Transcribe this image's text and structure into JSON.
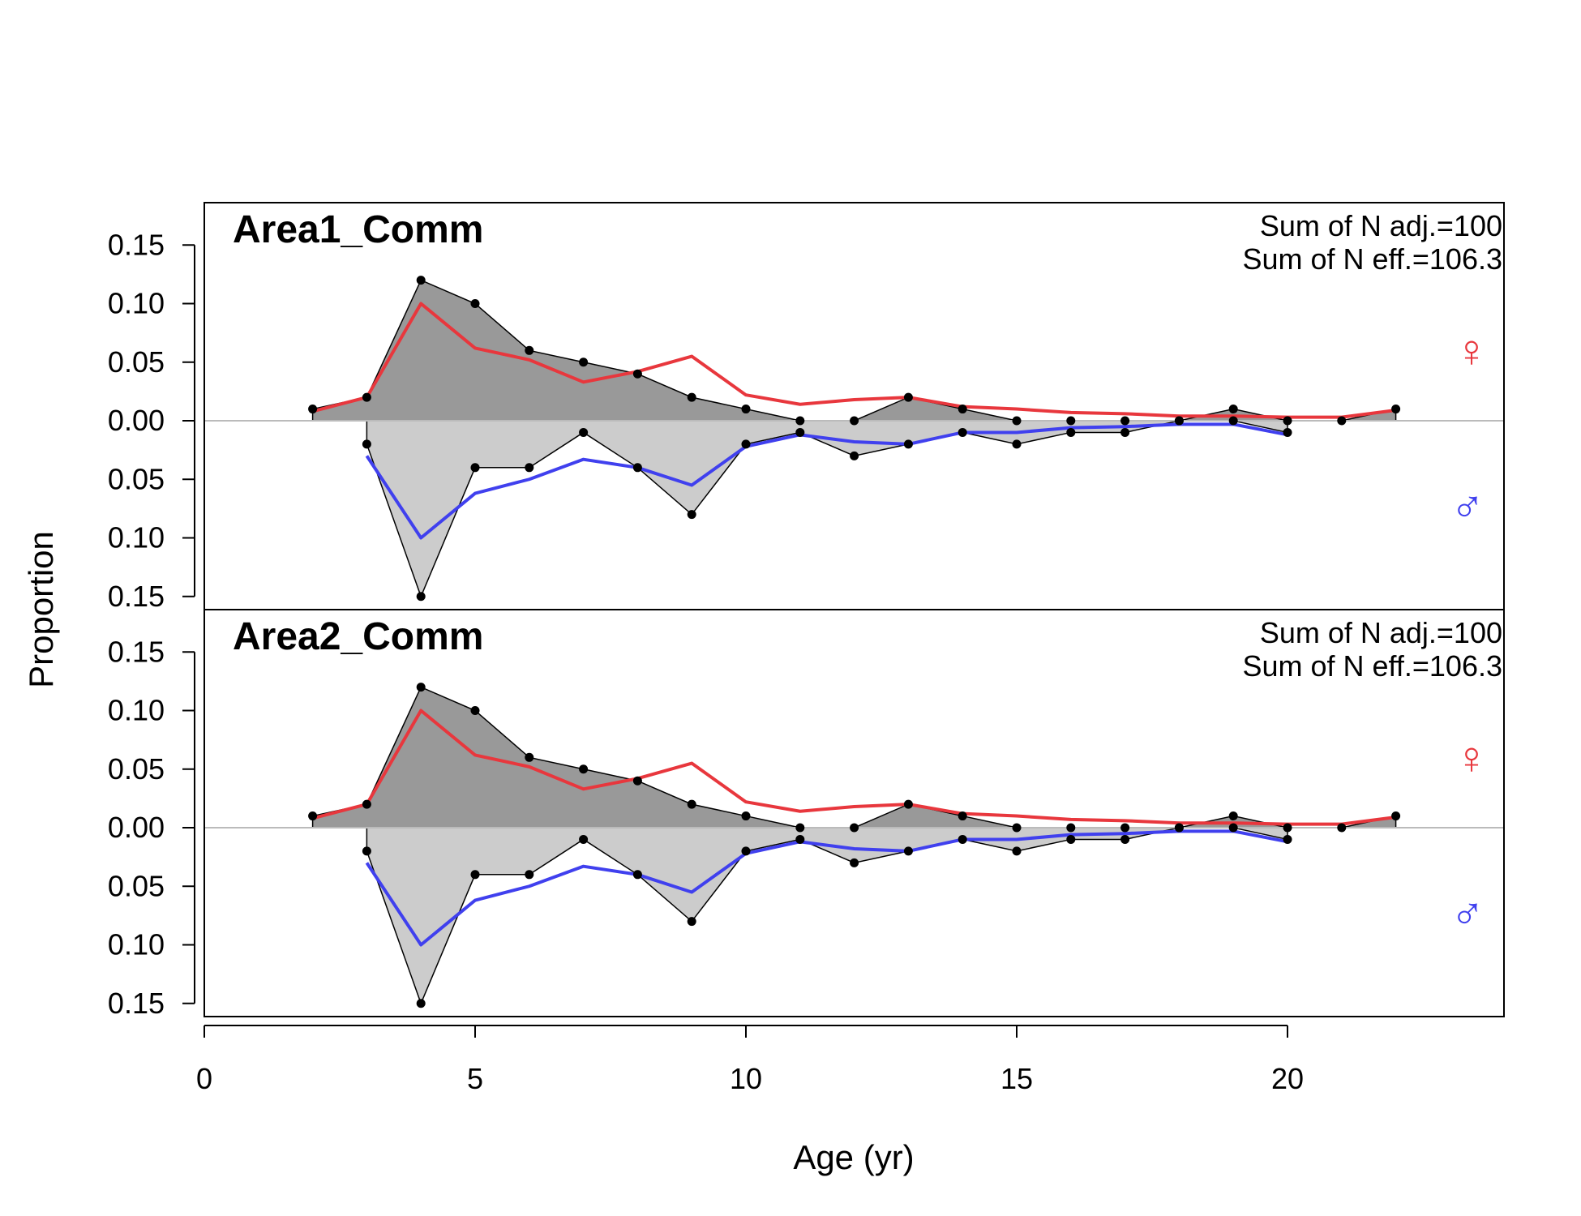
{
  "chart_data": {
    "type": "area",
    "xlabel": "Age (yr)",
    "ylabel": "Proportion",
    "xlim": [
      0,
      24
    ],
    "ylim": [
      -0.15,
      0.15
    ],
    "x_ticks": [
      "0",
      "5",
      "10",
      "15",
      "20"
    ],
    "x_tick_values": [
      0,
      5,
      10,
      15,
      20
    ],
    "y_ticks": [
      "0.15",
      "0.10",
      "0.05",
      "0.00",
      "0.05",
      "0.10",
      "0.15"
    ],
    "y_tick_values": [
      0.15,
      0.1,
      0.05,
      0.0,
      -0.05,
      -0.1,
      -0.15
    ],
    "colors": {
      "female_observed_fill": "#999999",
      "male_observed_fill": "#cccccc",
      "female_expected": "#e8373d",
      "male_expected": "#4040ee",
      "zero_line": "#bbbbbb"
    },
    "female_symbol": "♀",
    "male_symbol": "♂",
    "panels": [
      {
        "title": "Area1_Comm",
        "notes": [
          "Sum of N adj.=100",
          "Sum of N eff.=106.3"
        ],
        "female_observed": {
          "x": [
            2,
            3,
            4,
            5,
            6,
            7,
            8,
            9,
            10,
            11,
            12,
            13,
            14,
            15,
            16,
            17,
            18,
            19,
            20,
            21,
            22
          ],
          "y": [
            0.01,
            0.02,
            0.12,
            0.1,
            0.06,
            0.05,
            0.04,
            0.02,
            0.01,
            0.0,
            0.0,
            0.02,
            0.01,
            0.0,
            0.0,
            0.0,
            0.0,
            0.01,
            0.0,
            0.0,
            0.01
          ]
        },
        "female_expected": {
          "x": [
            2,
            3,
            4,
            5,
            6,
            7,
            8,
            9,
            10,
            11,
            12,
            13,
            14,
            15,
            16,
            17,
            18,
            19,
            20,
            21,
            22
          ],
          "y": [
            0.008,
            0.02,
            0.1,
            0.062,
            0.052,
            0.033,
            0.042,
            0.055,
            0.022,
            0.014,
            0.018,
            0.02,
            0.012,
            0.01,
            0.007,
            0.006,
            0.004,
            0.004,
            0.003,
            0.003,
            0.009
          ]
        },
        "male_observed": {
          "x": [
            3,
            4,
            5,
            6,
            7,
            8,
            9,
            10,
            11,
            12,
            13,
            14,
            15,
            16,
            17,
            18,
            19,
            20
          ],
          "y": [
            0.02,
            0.15,
            0.04,
            0.04,
            0.01,
            0.04,
            0.08,
            0.02,
            0.01,
            0.03,
            0.02,
            0.01,
            0.02,
            0.01,
            0.01,
            0.0,
            0.0,
            0.01
          ]
        },
        "male_expected": {
          "x": [
            3,
            4,
            5,
            6,
            7,
            8,
            9,
            10,
            11,
            12,
            13,
            14,
            15,
            16,
            17,
            18,
            19,
            20
          ],
          "y": [
            0.03,
            0.1,
            0.062,
            0.05,
            0.033,
            0.04,
            0.055,
            0.022,
            0.012,
            0.018,
            0.02,
            0.01,
            0.01,
            0.006,
            0.005,
            0.003,
            0.003,
            0.012
          ]
        }
      },
      {
        "title": "Area2_Comm",
        "notes": [
          "Sum of N adj.=100",
          "Sum of N eff.=106.3"
        ],
        "female_observed": {
          "x": [
            2,
            3,
            4,
            5,
            6,
            7,
            8,
            9,
            10,
            11,
            12,
            13,
            14,
            15,
            16,
            17,
            18,
            19,
            20,
            21,
            22
          ],
          "y": [
            0.01,
            0.02,
            0.12,
            0.1,
            0.06,
            0.05,
            0.04,
            0.02,
            0.01,
            0.0,
            0.0,
            0.02,
            0.01,
            0.0,
            0.0,
            0.0,
            0.0,
            0.01,
            0.0,
            0.0,
            0.01
          ]
        },
        "female_expected": {
          "x": [
            2,
            3,
            4,
            5,
            6,
            7,
            8,
            9,
            10,
            11,
            12,
            13,
            14,
            15,
            16,
            17,
            18,
            19,
            20,
            21,
            22
          ],
          "y": [
            0.008,
            0.02,
            0.1,
            0.062,
            0.052,
            0.033,
            0.042,
            0.055,
            0.022,
            0.014,
            0.018,
            0.02,
            0.012,
            0.01,
            0.007,
            0.006,
            0.004,
            0.004,
            0.003,
            0.003,
            0.009
          ]
        },
        "male_observed": {
          "x": [
            3,
            4,
            5,
            6,
            7,
            8,
            9,
            10,
            11,
            12,
            13,
            14,
            15,
            16,
            17,
            18,
            19,
            20
          ],
          "y": [
            0.02,
            0.15,
            0.04,
            0.04,
            0.01,
            0.04,
            0.08,
            0.02,
            0.01,
            0.03,
            0.02,
            0.01,
            0.02,
            0.01,
            0.01,
            0.0,
            0.0,
            0.01
          ]
        },
        "male_expected": {
          "x": [
            3,
            4,
            5,
            6,
            7,
            8,
            9,
            10,
            11,
            12,
            13,
            14,
            15,
            16,
            17,
            18,
            19,
            20
          ],
          "y": [
            0.03,
            0.1,
            0.062,
            0.05,
            0.033,
            0.04,
            0.055,
            0.022,
            0.012,
            0.018,
            0.02,
            0.01,
            0.01,
            0.006,
            0.005,
            0.003,
            0.003,
            0.012
          ]
        }
      }
    ]
  }
}
